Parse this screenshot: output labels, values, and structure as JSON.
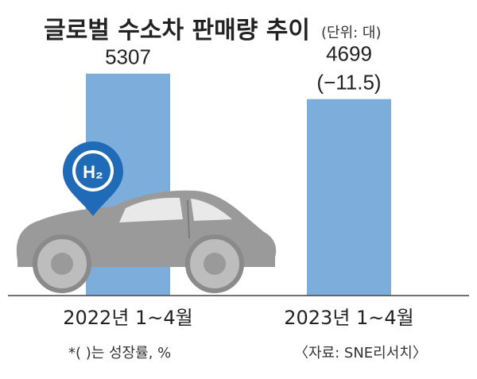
{
  "header": {
    "title": "글로벌 수소차 판매량 추이",
    "unit": "(단위: 대)"
  },
  "icon": {
    "name": "hydrogen-car-icon",
    "badge_text": "H₂",
    "badge_color": "#1f6bb8",
    "car_color": "#9b9b9b"
  },
  "chart_data": {
    "type": "bar",
    "categories": [
      "2022년 1~4월",
      "2023년 1~4월"
    ],
    "values": [
      5307,
      4699
    ],
    "data_labels": [
      "5307",
      "4699"
    ],
    "growth_labels": [
      "",
      "(−11.5)"
    ],
    "bar_color": "#7daedb",
    "ylim": [
      0,
      5700
    ],
    "grid": false,
    "title": "글로벌 수소차 판매량 추이",
    "unit_label": "(단위: 대)"
  },
  "footer": {
    "note": "*(  )는 성장률, %",
    "source": "〈자료: SNE리서치〉"
  },
  "colors": {
    "background": "#ffffff",
    "text": "#222222",
    "axis": "#444444"
  }
}
